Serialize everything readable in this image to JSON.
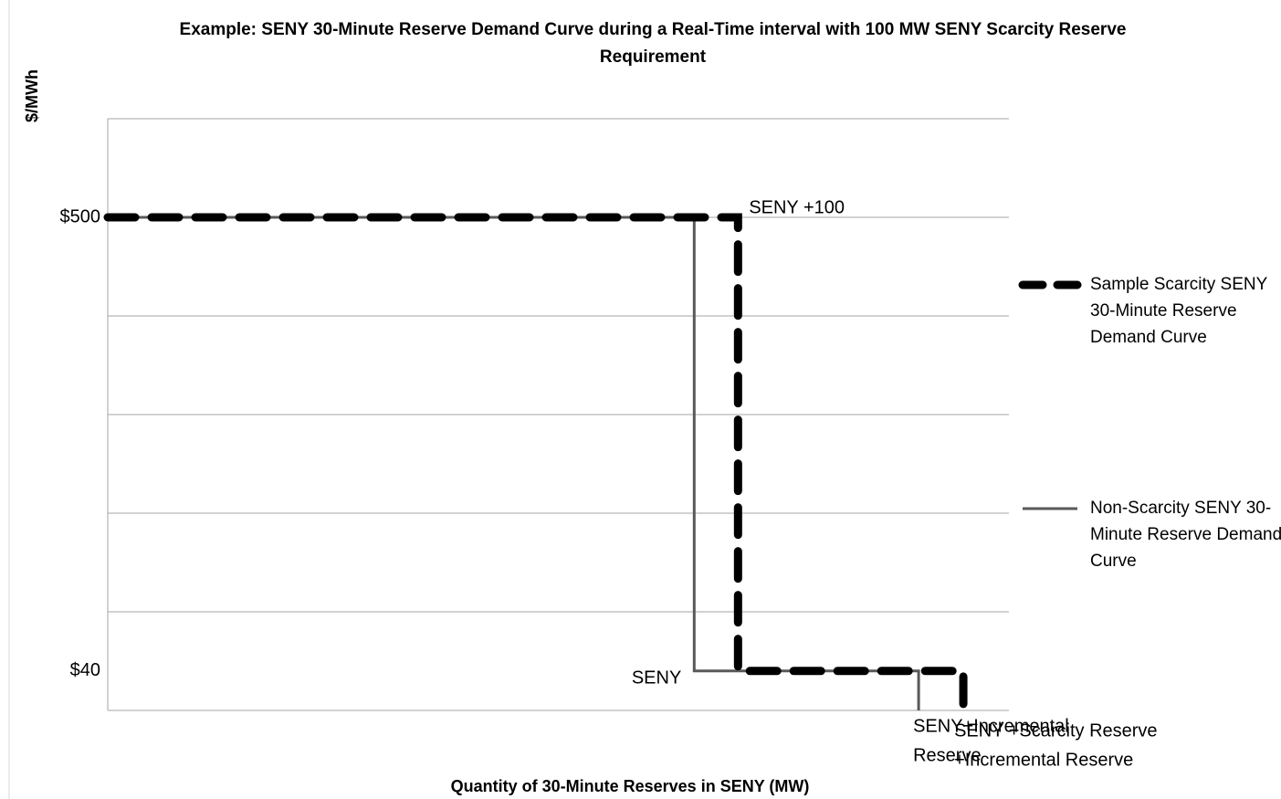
{
  "chart_data": {
    "type": "line",
    "title": "Example: SENY 30-Minute Reserve Demand Curve during a Real-Time interval with 100 MW SENY Scarcity Reserve Requirement",
    "x_label": "Quantity of 30-Minute Reserves in SENY (MW)",
    "y_label": "$/MWh",
    "xlim": [
      0,
      2056
    ],
    "ylim": [
      0,
      600
    ],
    "yticks": [
      {
        "value": 40,
        "label": "$40"
      },
      {
        "value": 500,
        "label": "$500"
      }
    ],
    "ygrid": [
      0,
      100,
      200,
      300,
      400,
      500,
      600
    ],
    "legend": "right",
    "series": [
      {
        "name": "Sample Scarcity SENY 30-Minute Reserve Demand Curve",
        "color": "#000000",
        "style": "dashed",
        "x": [
          0,
          1438,
          1438,
          1952,
          1952
        ],
        "values": [
          500,
          500,
          40,
          40,
          0
        ]
      },
      {
        "name": "Non-Scarcity SENY 30-Minute Reserve Demand Curve",
        "color": "#595959",
        "style": "solid",
        "x": [
          0,
          1338,
          1338,
          1850,
          1850
        ],
        "values": [
          500,
          500,
          40,
          40,
          0
        ]
      }
    ],
    "annotations": [
      {
        "lines": [
          "SENY +100"
        ],
        "x": 1438,
        "y": 500
      },
      {
        "lines": [
          "SENY"
        ],
        "x": 1338,
        "y": 40
      },
      {
        "lines": [
          "SENY+Incremental",
          "Reserve"
        ],
        "x": 1850,
        "y": 0
      },
      {
        "lines": [
          "SENY +Scarcity Reserve",
          "+Incremental Reserve"
        ],
        "x": 1952,
        "y": 0
      }
    ]
  }
}
